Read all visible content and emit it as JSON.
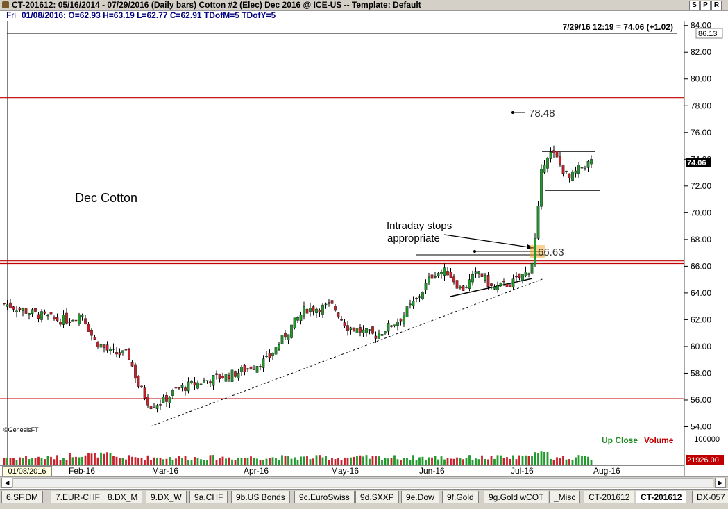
{
  "window": {
    "title": "CT-201612:  05/16/2014 - 07/29/2016  (Daily bars)   Cotton #2 (Elec) Dec 2016 @ ICE-US  --  Template: Default",
    "buttons": [
      "S",
      "P",
      "R"
    ]
  },
  "quote": {
    "day": "Fri",
    "text": "01/08/2016:  O=62.93  H=63.19  L=62.77  C=62.91  TDofM=5  TDofY=5"
  },
  "last_update": "7/29/16 12:19 = 74.06 (+1.02)",
  "price_box_top": "86.13",
  "price_box_last": "74.06",
  "volume_box": "21926.00",
  "annotations": {
    "chart_label": "Dec Cotton",
    "stops_line1": "Intraday stops",
    "stops_line2": "appropriate",
    "level_6663": "66.63",
    "level_7848": "78.48",
    "copyright": "©GenesisFT",
    "up_close": "Up Close",
    "volume": "Volume"
  },
  "colors": {
    "up": "#1f9a2b",
    "down": "#c8202a",
    "hline": "#c00000",
    "up_label": "#1e8a1e",
    "volume_label": "#c00000"
  },
  "chart_data": {
    "type": "candlestick",
    "yticks": [
      "54.00",
      "56.00",
      "58.00",
      "60.00",
      "62.00",
      "64.00",
      "66.00",
      "68.00",
      "70.00",
      "72.00",
      "74.00",
      "76.00",
      "78.00",
      "80.00",
      "82.00",
      "84.00",
      "8"
    ],
    "ytick_values": [
      54,
      56,
      58,
      60,
      62,
      64,
      66,
      68,
      70,
      72,
      74,
      76,
      78,
      80,
      82,
      84,
      86
    ],
    "volume_tick": "100000",
    "x_first_label": "01/08/2016",
    "month_labels": [
      "Feb-16",
      "Mar-16",
      "Apr-16",
      "May-16",
      "Jun-16",
      "Jul-16",
      "Aug-16"
    ],
    "horizontal_levels": [
      78.6,
      66.4,
      66.2,
      56.1
    ],
    "ylim": [
      53,
      87
    ],
    "grid": false
  },
  "tabs": [
    {
      "label": "6.SF.DM"
    },
    {
      "label": "7.EUR-CHF"
    },
    {
      "label": "8.DX_M"
    },
    {
      "label": "9.DX_W"
    },
    {
      "label": "9a.CHF"
    },
    {
      "label": "9b.US Bonds"
    },
    {
      "label": "9c.EuroSwiss"
    },
    {
      "label": "9d.SXXP"
    },
    {
      "label": "9e.Dow"
    },
    {
      "label": "9f.Gold"
    },
    {
      "label": "9g.Gold wCOT"
    },
    {
      "label": "_Misc"
    },
    {
      "label": "CT-201612"
    },
    {
      "label": "CT-201612"
    },
    {
      "label": "DX-057"
    }
  ]
}
